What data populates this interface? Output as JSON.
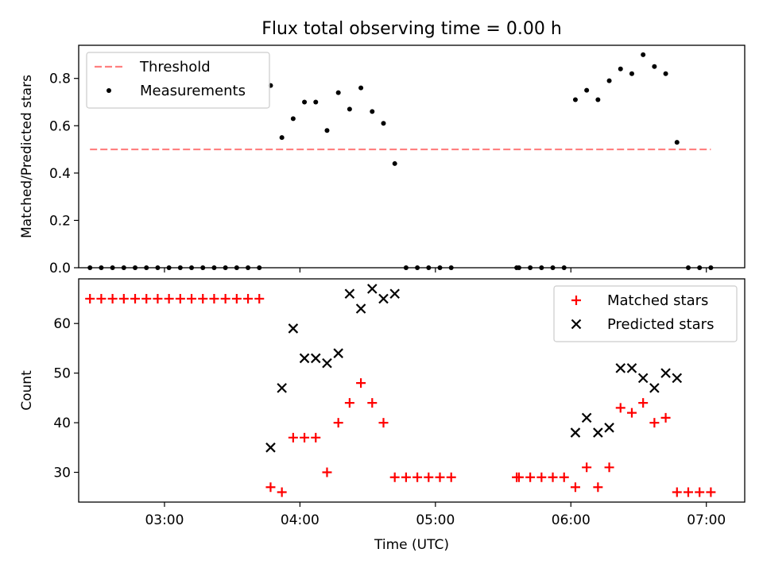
{
  "figure": {
    "title": "Flux total observing time = 0.00 h"
  },
  "chart_data": [
    {
      "type": "scatter",
      "panel": "top",
      "ylabel": "Matched/Predicted stars",
      "xlabel": "",
      "xlim": [
        "02:22",
        "07:17"
      ],
      "ylim": [
        0,
        0.94
      ],
      "yticks": [
        0.0,
        0.2,
        0.4,
        0.6,
        0.8
      ],
      "ytick_labels": [
        "0.0",
        "0.2",
        "0.4",
        "0.6",
        "0.8"
      ],
      "xticks": [
        "03:00",
        "04:00",
        "05:00",
        "06:00",
        "07:00"
      ],
      "legend": {
        "placement": "top-left"
      },
      "threshold": {
        "name": "Threshold",
        "value": 0.5,
        "x_start": "02:27",
        "x_end": "07:02",
        "color": "#ff7f7f",
        "style": "dashed"
      },
      "series": [
        {
          "name": "Measurements",
          "color": "#000000",
          "marker": "dot",
          "points": [
            [
              "02:27",
              0.0
            ],
            [
              "02:32",
              0.0
            ],
            [
              "02:37",
              0.0
            ],
            [
              "02:42",
              0.0
            ],
            [
              "02:47",
              0.0
            ],
            [
              "02:52",
              0.0
            ],
            [
              "02:57",
              0.0
            ],
            [
              "03:02",
              0.0
            ],
            [
              "03:07",
              0.0
            ],
            [
              "03:12",
              0.0
            ],
            [
              "03:17",
              0.0
            ],
            [
              "03:22",
              0.0
            ],
            [
              "03:27",
              0.0
            ],
            [
              "03:32",
              0.0
            ],
            [
              "03:37",
              0.0
            ],
            [
              "03:42",
              0.0
            ],
            [
              "03:47",
              0.77
            ],
            [
              "03:52",
              0.55
            ],
            [
              "03:57",
              0.63
            ],
            [
              "04:02",
              0.7
            ],
            [
              "04:07",
              0.7
            ],
            [
              "04:12",
              0.58
            ],
            [
              "04:17",
              0.74
            ],
            [
              "04:22",
              0.67
            ],
            [
              "04:27",
              0.76
            ],
            [
              "04:32",
              0.66
            ],
            [
              "04:37",
              0.61
            ],
            [
              "04:42",
              0.44
            ],
            [
              "04:47",
              0.0
            ],
            [
              "04:52",
              0.0
            ],
            [
              "04:57",
              0.0
            ],
            [
              "05:02",
              0.0
            ],
            [
              "05:07",
              0.0
            ],
            [
              "05:36",
              0.0
            ],
            [
              "05:37",
              0.0
            ],
            [
              "05:42",
              0.0
            ],
            [
              "05:47",
              0.0
            ],
            [
              "05:52",
              0.0
            ],
            [
              "05:57",
              0.0
            ],
            [
              "06:02",
              0.71
            ],
            [
              "06:07",
              0.75
            ],
            [
              "06:12",
              0.71
            ],
            [
              "06:17",
              0.79
            ],
            [
              "06:22",
              0.84
            ],
            [
              "06:27",
              0.82
            ],
            [
              "06:32",
              0.9
            ],
            [
              "06:37",
              0.85
            ],
            [
              "06:42",
              0.82
            ],
            [
              "06:47",
              0.53
            ],
            [
              "06:52",
              0.0
            ],
            [
              "06:57",
              0.0
            ],
            [
              "07:02",
              0.0
            ]
          ]
        }
      ]
    },
    {
      "type": "scatter",
      "panel": "bottom",
      "ylabel": "Count",
      "xlabel": "Time (UTC)",
      "xlim": [
        "02:22",
        "07:17"
      ],
      "ylim": [
        24,
        69
      ],
      "yticks": [
        30,
        40,
        50,
        60
      ],
      "ytick_labels": [
        "30",
        "40",
        "50",
        "60"
      ],
      "xticks": [
        "03:00",
        "04:00",
        "05:00",
        "06:00",
        "07:00"
      ],
      "xtick_labels": [
        "03:00",
        "04:00",
        "05:00",
        "06:00",
        "07:00"
      ],
      "legend": {
        "placement": "top-right"
      },
      "series": [
        {
          "name": "Matched stars",
          "color": "#ff0000",
          "marker": "plus",
          "points": [
            [
              "02:27",
              65
            ],
            [
              "02:32",
              65
            ],
            [
              "02:37",
              65
            ],
            [
              "02:42",
              65
            ],
            [
              "02:47",
              65
            ],
            [
              "02:52",
              65
            ],
            [
              "02:57",
              65
            ],
            [
              "03:02",
              65
            ],
            [
              "03:07",
              65
            ],
            [
              "03:12",
              65
            ],
            [
              "03:17",
              65
            ],
            [
              "03:22",
              65
            ],
            [
              "03:27",
              65
            ],
            [
              "03:32",
              65
            ],
            [
              "03:37",
              65
            ],
            [
              "03:42",
              65
            ],
            [
              "03:47",
              27
            ],
            [
              "03:52",
              26
            ],
            [
              "03:57",
              37
            ],
            [
              "04:02",
              37
            ],
            [
              "04:07",
              37
            ],
            [
              "04:12",
              30
            ],
            [
              "04:17",
              40
            ],
            [
              "04:22",
              44
            ],
            [
              "04:27",
              48
            ],
            [
              "04:32",
              44
            ],
            [
              "04:37",
              40
            ],
            [
              "04:42",
              29
            ],
            [
              "04:47",
              29
            ],
            [
              "04:52",
              29
            ],
            [
              "04:57",
              29
            ],
            [
              "05:02",
              29
            ],
            [
              "05:07",
              29
            ],
            [
              "05:36",
              29
            ],
            [
              "05:37",
              29
            ],
            [
              "05:42",
              29
            ],
            [
              "05:47",
              29
            ],
            [
              "05:52",
              29
            ],
            [
              "05:57",
              29
            ],
            [
              "06:02",
              27
            ],
            [
              "06:07",
              31
            ],
            [
              "06:12",
              27
            ],
            [
              "06:17",
              31
            ],
            [
              "06:22",
              43
            ],
            [
              "06:27",
              42
            ],
            [
              "06:32",
              44
            ],
            [
              "06:37",
              40
            ],
            [
              "06:42",
              41
            ],
            [
              "06:47",
              26
            ],
            [
              "06:52",
              26
            ],
            [
              "06:57",
              26
            ],
            [
              "07:02",
              26
            ]
          ]
        },
        {
          "name": "Predicted stars",
          "color": "#000000",
          "marker": "x",
          "points": [
            [
              "03:47",
              35
            ],
            [
              "03:52",
              47
            ],
            [
              "03:57",
              59
            ],
            [
              "04:02",
              53
            ],
            [
              "04:07",
              53
            ],
            [
              "04:12",
              52
            ],
            [
              "04:17",
              54
            ],
            [
              "04:22",
              66
            ],
            [
              "04:27",
              63
            ],
            [
              "04:32",
              67
            ],
            [
              "04:37",
              65
            ],
            [
              "04:42",
              66
            ],
            [
              "06:02",
              38
            ],
            [
              "06:07",
              41
            ],
            [
              "06:12",
              38
            ],
            [
              "06:17",
              39
            ],
            [
              "06:22",
              51
            ],
            [
              "06:27",
              51
            ],
            [
              "06:32",
              49
            ],
            [
              "06:37",
              47
            ],
            [
              "06:42",
              50
            ],
            [
              "06:47",
              49
            ]
          ]
        }
      ]
    }
  ]
}
